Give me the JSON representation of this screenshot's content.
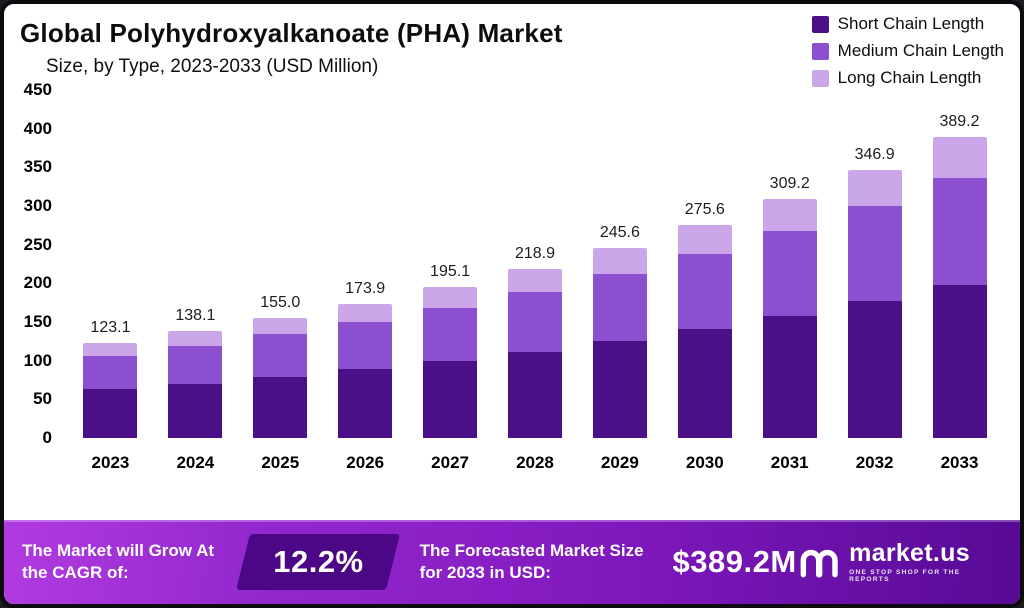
{
  "header": {
    "title_line1": "Global Polyhydroxyalkanoate (PHA) Market",
    "title_line2": "Size, by Type, 2023-2033 (USD Million)"
  },
  "chart_data": {
    "type": "bar",
    "stacked": true,
    "title": "Global Polyhydroxyalkanoate (PHA) Market Size, by Type, 2023-2033 (USD Million)",
    "xlabel": "",
    "ylabel": "",
    "ylim": [
      0,
      450
    ],
    "yticks": [
      0,
      50,
      100,
      150,
      200,
      250,
      300,
      350,
      400,
      450
    ],
    "grid": false,
    "legend_position": "top-right",
    "categories": [
      "2023",
      "2024",
      "2025",
      "2026",
      "2027",
      "2028",
      "2029",
      "2030",
      "2031",
      "2032",
      "2033"
    ],
    "totals": [
      123.1,
      138.1,
      155.0,
      173.9,
      195.1,
      218.9,
      245.6,
      275.6,
      309.2,
      346.9,
      389.2
    ],
    "series": [
      {
        "name": "Short Chain Length",
        "color": "#4b1087",
        "values": [
          62.8,
          70.4,
          79.1,
          88.7,
          99.5,
          111.6,
          125.3,
          140.6,
          157.7,
          176.9,
          198.5
        ]
      },
      {
        "name": "Medium Chain Length",
        "color": "#8c4fd0",
        "values": [
          43.7,
          49.0,
          55.0,
          61.7,
          69.3,
          77.7,
          87.2,
          97.8,
          109.8,
          123.1,
          138.2
        ]
      },
      {
        "name": "Long Chain Length",
        "color": "#cba7ea",
        "values": [
          16.6,
          18.7,
          20.9,
          23.5,
          26.3,
          29.6,
          33.1,
          37.2,
          41.7,
          46.9,
          52.5
        ]
      }
    ]
  },
  "footer": {
    "cagr_label": "The Market will Grow At the CAGR of:",
    "cagr_value": "12.2%",
    "forecast_label": "The Forecasted Market Size for 2033 in USD:",
    "forecast_value": "$389.2M",
    "brand": "market.us",
    "brand_tagline": "One Stop Shop For The Reports"
  }
}
